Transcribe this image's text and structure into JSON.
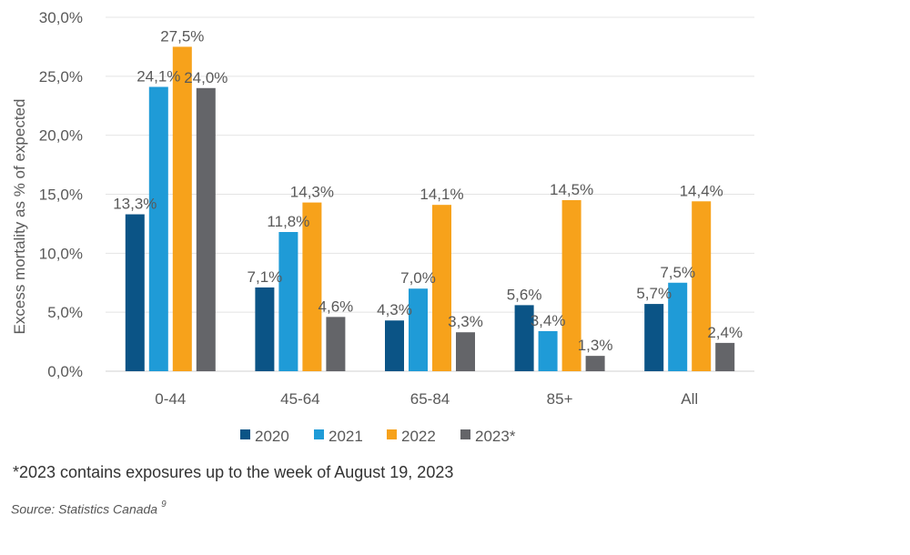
{
  "chart_data": {
    "type": "bar",
    "title": "",
    "xlabel": "",
    "ylabel": "Excess mortality as % of expected",
    "ylim": [
      0,
      30
    ],
    "yticks": [
      "0,0%",
      "5,0%",
      "10,0%",
      "15,0%",
      "20,0%",
      "25,0%",
      "30,0%"
    ],
    "categories": [
      "0-44",
      "45-64",
      "65-84",
      "85+",
      "All"
    ],
    "series": [
      {
        "name": "2020",
        "color": "#0b5486",
        "values": [
          13.3,
          7.1,
          4.3,
          5.6,
          5.7
        ],
        "labels": [
          "13,3%",
          "7,1%",
          "4,3%",
          "5,6%",
          "5,7%"
        ]
      },
      {
        "name": "2021",
        "color": "#1f9bd7",
        "values": [
          24.1,
          11.8,
          7.0,
          3.4,
          7.5
        ],
        "labels": [
          "24,1%",
          "11,8%",
          "7,0%",
          "3,4%",
          "7,5%"
        ]
      },
      {
        "name": "2022",
        "color": "#f7a21b",
        "values": [
          27.5,
          14.3,
          14.1,
          14.5,
          14.4
        ],
        "labels": [
          "27,5%",
          "14,3%",
          "14,1%",
          "14,5%",
          "14,4%"
        ]
      },
      {
        "name": "2023*",
        "color": "#646569",
        "values": [
          24.0,
          4.6,
          3.3,
          1.3,
          2.4
        ],
        "labels": [
          "24,0%",
          "4,6%",
          "3,3%",
          "1,3%",
          "2,4%"
        ]
      }
    ],
    "legend_position": "bottom",
    "grid": true
  },
  "footnote": "*2023 contains  exposures up to the week of August 19, 2023",
  "source": {
    "text": "Source: Statistics Canada",
    "superscript": "9"
  }
}
